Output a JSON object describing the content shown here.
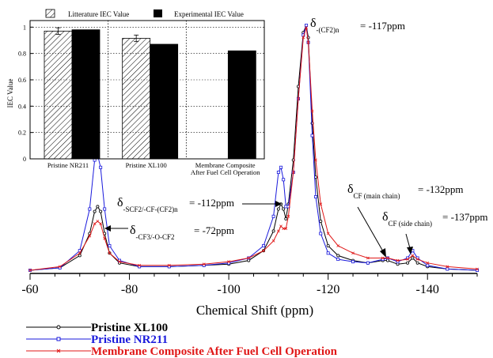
{
  "chart_data": [
    {
      "type": "line",
      "xlabel": "Chemical Shift (ppm)",
      "ylabel": "",
      "xlim": [
        -60,
        -150
      ],
      "ylim": [
        0,
        1.0
      ],
      "x_ticks": [
        "-60",
        "-80",
        "-100",
        "-120",
        "-140"
      ],
      "x_tick_values": [
        -60,
        -80,
        -100,
        -120,
        -140
      ],
      "grid": false,
      "legend_position": "bottom-left",
      "series": [
        {
          "name": "Pristine XL100",
          "color": "#000000",
          "marker": "circle",
          "x": [
            -60,
            -66,
            -70,
            -72,
            -73,
            -73.6,
            -74.2,
            -75,
            -76,
            -78,
            -82,
            -88,
            -95,
            -100,
            -104,
            -107,
            -109,
            -110,
            -110.5,
            -111,
            -111.5,
            -112,
            -113,
            -114,
            -115,
            -115.6,
            -116,
            -116.8,
            -117.5,
            -118.5,
            -120,
            -122,
            -125,
            -128,
            -131,
            -132,
            -134,
            -136,
            -137,
            -138,
            -140,
            -144,
            -150
          ],
          "values": [
            0.0,
            0.01,
            0.06,
            0.15,
            0.24,
            0.26,
            0.24,
            0.15,
            0.07,
            0.03,
            0.015,
            0.015,
            0.02,
            0.025,
            0.04,
            0.08,
            0.16,
            0.25,
            0.27,
            0.25,
            0.21,
            0.27,
            0.45,
            0.75,
            0.97,
            1.0,
            0.95,
            0.6,
            0.38,
            0.2,
            0.1,
            0.06,
            0.04,
            0.03,
            0.04,
            0.04,
            0.025,
            0.03,
            0.05,
            0.03,
            0.015,
            0.005,
            0.0
          ]
        },
        {
          "name": "Pristine NR211",
          "color": "#1a1adc",
          "marker": "square",
          "x": [
            -60,
            -66,
            -70,
            -72,
            -73,
            -73.6,
            -74.2,
            -75,
            -76,
            -78,
            -82,
            -88,
            -95,
            -100,
            -104,
            -107,
            -109,
            -110,
            -110.5,
            -111,
            -111.5,
            -112,
            -113,
            -114,
            -115,
            -115.6,
            -116,
            -116.8,
            -117.5,
            -118.5,
            -120,
            -122,
            -125,
            -128,
            -131,
            -132,
            -134,
            -136,
            -137,
            -138,
            -140,
            -144,
            -150
          ],
          "values": [
            0.0,
            0.01,
            0.08,
            0.25,
            0.45,
            0.47,
            0.42,
            0.25,
            0.1,
            0.04,
            0.015,
            0.015,
            0.02,
            0.03,
            0.05,
            0.1,
            0.22,
            0.4,
            0.42,
            0.37,
            0.26,
            0.26,
            0.4,
            0.7,
            0.96,
            1.0,
            0.93,
            0.55,
            0.3,
            0.15,
            0.07,
            0.045,
            0.035,
            0.03,
            0.045,
            0.05,
            0.035,
            0.05,
            0.08,
            0.05,
            0.02,
            0.005,
            0.0
          ]
        },
        {
          "name": "Membrane Composite After Fuel Cell Operation",
          "color": "#e01818",
          "marker": "cross",
          "x": [
            -60,
            -66,
            -70,
            -72,
            -73,
            -73.6,
            -74.2,
            -75,
            -76,
            -78,
            -82,
            -88,
            -95,
            -100,
            -104,
            -107,
            -109,
            -110,
            -110.5,
            -111,
            -111.5,
            -112,
            -113,
            -114,
            -115,
            -115.6,
            -116,
            -116.8,
            -117.5,
            -118.5,
            -120,
            -122,
            -125,
            -128,
            -131,
            -132,
            -134,
            -136,
            -137,
            -138,
            -140,
            -144,
            -150
          ],
          "values": [
            0.0,
            0.015,
            0.07,
            0.14,
            0.19,
            0.2,
            0.19,
            0.13,
            0.07,
            0.035,
            0.02,
            0.02,
            0.025,
            0.035,
            0.05,
            0.08,
            0.12,
            0.16,
            0.18,
            0.17,
            0.17,
            0.22,
            0.4,
            0.7,
            0.95,
            0.99,
            0.93,
            0.65,
            0.45,
            0.27,
            0.15,
            0.1,
            0.07,
            0.05,
            0.05,
            0.05,
            0.04,
            0.045,
            0.06,
            0.045,
            0.03,
            0.015,
            0.005
          ]
        }
      ],
      "annotations": [
        {
          "main": "δ",
          "sub": "-(CF2)n",
          "value": "= -117ppm"
        },
        {
          "main": "δ",
          "sub": "-SCF2/-CF-(CF2)n",
          "value": "= -112ppm"
        },
        {
          "main": "δ",
          "sub": "-CF3/-O-CF2",
          "value": "= -72ppm"
        },
        {
          "main": "δ",
          "sub": "CF (main chain)",
          "value": "= -132ppm"
        },
        {
          "main": "δ",
          "sub": "CF (side chain)",
          "value": "= -137ppm"
        }
      ]
    },
    {
      "type": "bar",
      "categories": [
        "Pristine NR211",
        "Pristine XL100",
        "Membrane Composite After Fuel Cell Operation"
      ],
      "category_lines": [
        [
          "Pristine NR211"
        ],
        [
          "Pristine XL100"
        ],
        [
          "Membrane Composite",
          "After Fuel Cell Operation"
        ]
      ],
      "ylabel": "IEC Value",
      "ylim": [
        0,
        1.05
      ],
      "y_ticks": [
        "0",
        "0.2",
        "0.4",
        "0.6",
        "0.8",
        "1"
      ],
      "y_tick_values": [
        0,
        0.2,
        0.4,
        0.6,
        0.8,
        1.0
      ],
      "grid": true,
      "legend_position": "top",
      "series": [
        {
          "name": "Litterature IEC Value",
          "pattern": "hatched",
          "values": [
            0.97,
            0.915,
            null
          ],
          "error": [
            0.025,
            0.025,
            null
          ]
        },
        {
          "name": "Experimental IEC Value",
          "color": "#000000",
          "values": [
            0.98,
            0.87,
            0.82
          ]
        }
      ]
    }
  ]
}
